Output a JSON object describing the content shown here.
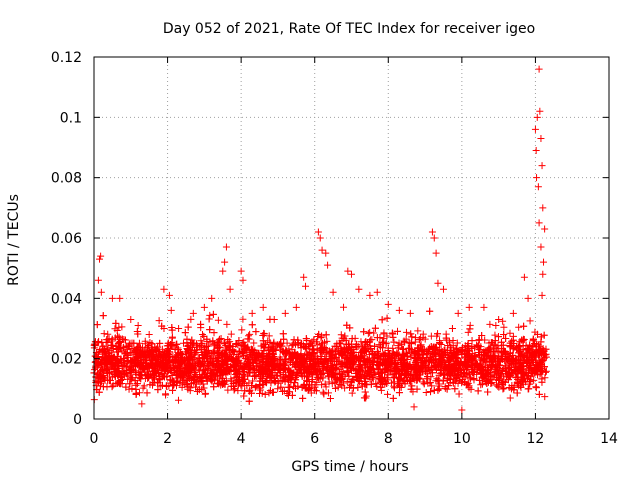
{
  "chart_data": {
    "type": "scatter",
    "title": "Day 052 of 2021, Rate Of TEC Index for receiver igeo",
    "xlabel": "GPS time / hours",
    "ylabel": "ROTI / TECUs",
    "xlim": [
      0,
      14
    ],
    "ylim": [
      0,
      0.12
    ],
    "x_ticks": [
      0,
      2,
      4,
      6,
      8,
      10,
      12,
      14
    ],
    "x_tick_labels": [
      "0",
      "2",
      "4",
      "6",
      "8",
      "10",
      "12",
      "14"
    ],
    "y_ticks": [
      0,
      0.02,
      0.04,
      0.06,
      0.08,
      0.1,
      0.12
    ],
    "y_tick_labels": [
      "0",
      "0.02",
      "0.04",
      "0.06",
      "0.08",
      "0.1",
      "0.12"
    ],
    "grid": true,
    "marker": "+",
    "color": "#ff0000",
    "series": [
      {
        "name": "ROTI",
        "note": "dense cloud of points between 0.005 and 0.03 TECU/s from 0 to 12.3 h; selected visible outliers listed",
        "points": [
          [
            0.15,
            0.053
          ],
          [
            0.18,
            0.054
          ],
          [
            0.12,
            0.046
          ],
          [
            0.2,
            0.042
          ],
          [
            0.5,
            0.04
          ],
          [
            0.7,
            0.04
          ],
          [
            1.0,
            0.033
          ],
          [
            1.2,
            0.031
          ],
          [
            1.5,
            0.028
          ],
          [
            1.9,
            0.043
          ],
          [
            2.05,
            0.041
          ],
          [
            2.1,
            0.036
          ],
          [
            2.3,
            0.03
          ],
          [
            2.7,
            0.035
          ],
          [
            3.0,
            0.037
          ],
          [
            3.2,
            0.04
          ],
          [
            3.5,
            0.049
          ],
          [
            3.55,
            0.052
          ],
          [
            3.6,
            0.057
          ],
          [
            3.7,
            0.043
          ],
          [
            4.0,
            0.049
          ],
          [
            4.05,
            0.046
          ],
          [
            4.3,
            0.035
          ],
          [
            4.6,
            0.037
          ],
          [
            4.9,
            0.033
          ],
          [
            5.2,
            0.035
          ],
          [
            5.5,
            0.037
          ],
          [
            5.7,
            0.047
          ],
          [
            5.75,
            0.044
          ],
          [
            6.1,
            0.062
          ],
          [
            6.15,
            0.06
          ],
          [
            6.2,
            0.056
          ],
          [
            6.3,
            0.055
          ],
          [
            6.35,
            0.051
          ],
          [
            6.5,
            0.042
          ],
          [
            6.9,
            0.049
          ],
          [
            7.0,
            0.048
          ],
          [
            7.2,
            0.043
          ],
          [
            7.5,
            0.041
          ],
          [
            7.7,
            0.042
          ],
          [
            8.0,
            0.038
          ],
          [
            8.3,
            0.036
          ],
          [
            8.6,
            0.035
          ],
          [
            9.2,
            0.062
          ],
          [
            9.25,
            0.06
          ],
          [
            9.3,
            0.055
          ],
          [
            9.35,
            0.045
          ],
          [
            9.5,
            0.043
          ],
          [
            9.9,
            0.035
          ],
          [
            10.2,
            0.037
          ],
          [
            10.6,
            0.037
          ],
          [
            11.0,
            0.033
          ],
          [
            11.4,
            0.035
          ],
          [
            11.7,
            0.047
          ],
          [
            11.8,
            0.04
          ],
          [
            12.0,
            0.096
          ],
          [
            12.05,
            0.1
          ],
          [
            12.1,
            0.116
          ],
          [
            12.12,
            0.102
          ],
          [
            12.15,
            0.093
          ],
          [
            12.02,
            0.089
          ],
          [
            12.18,
            0.084
          ],
          [
            12.03,
            0.08
          ],
          [
            12.08,
            0.077
          ],
          [
            12.2,
            0.07
          ],
          [
            12.1,
            0.065
          ],
          [
            12.25,
            0.063
          ],
          [
            12.15,
            0.057
          ],
          [
            12.22,
            0.052
          ],
          [
            12.2,
            0.048
          ],
          [
            12.18,
            0.041
          ],
          [
            10.0,
            0.003
          ],
          [
            8.7,
            0.004
          ],
          [
            1.3,
            0.005
          ]
        ]
      }
    ],
    "bulk": {
      "x_range": [
        0,
        12.3
      ],
      "typical_range": [
        0.005,
        0.03
      ],
      "count_drawn": 5200
    }
  }
}
